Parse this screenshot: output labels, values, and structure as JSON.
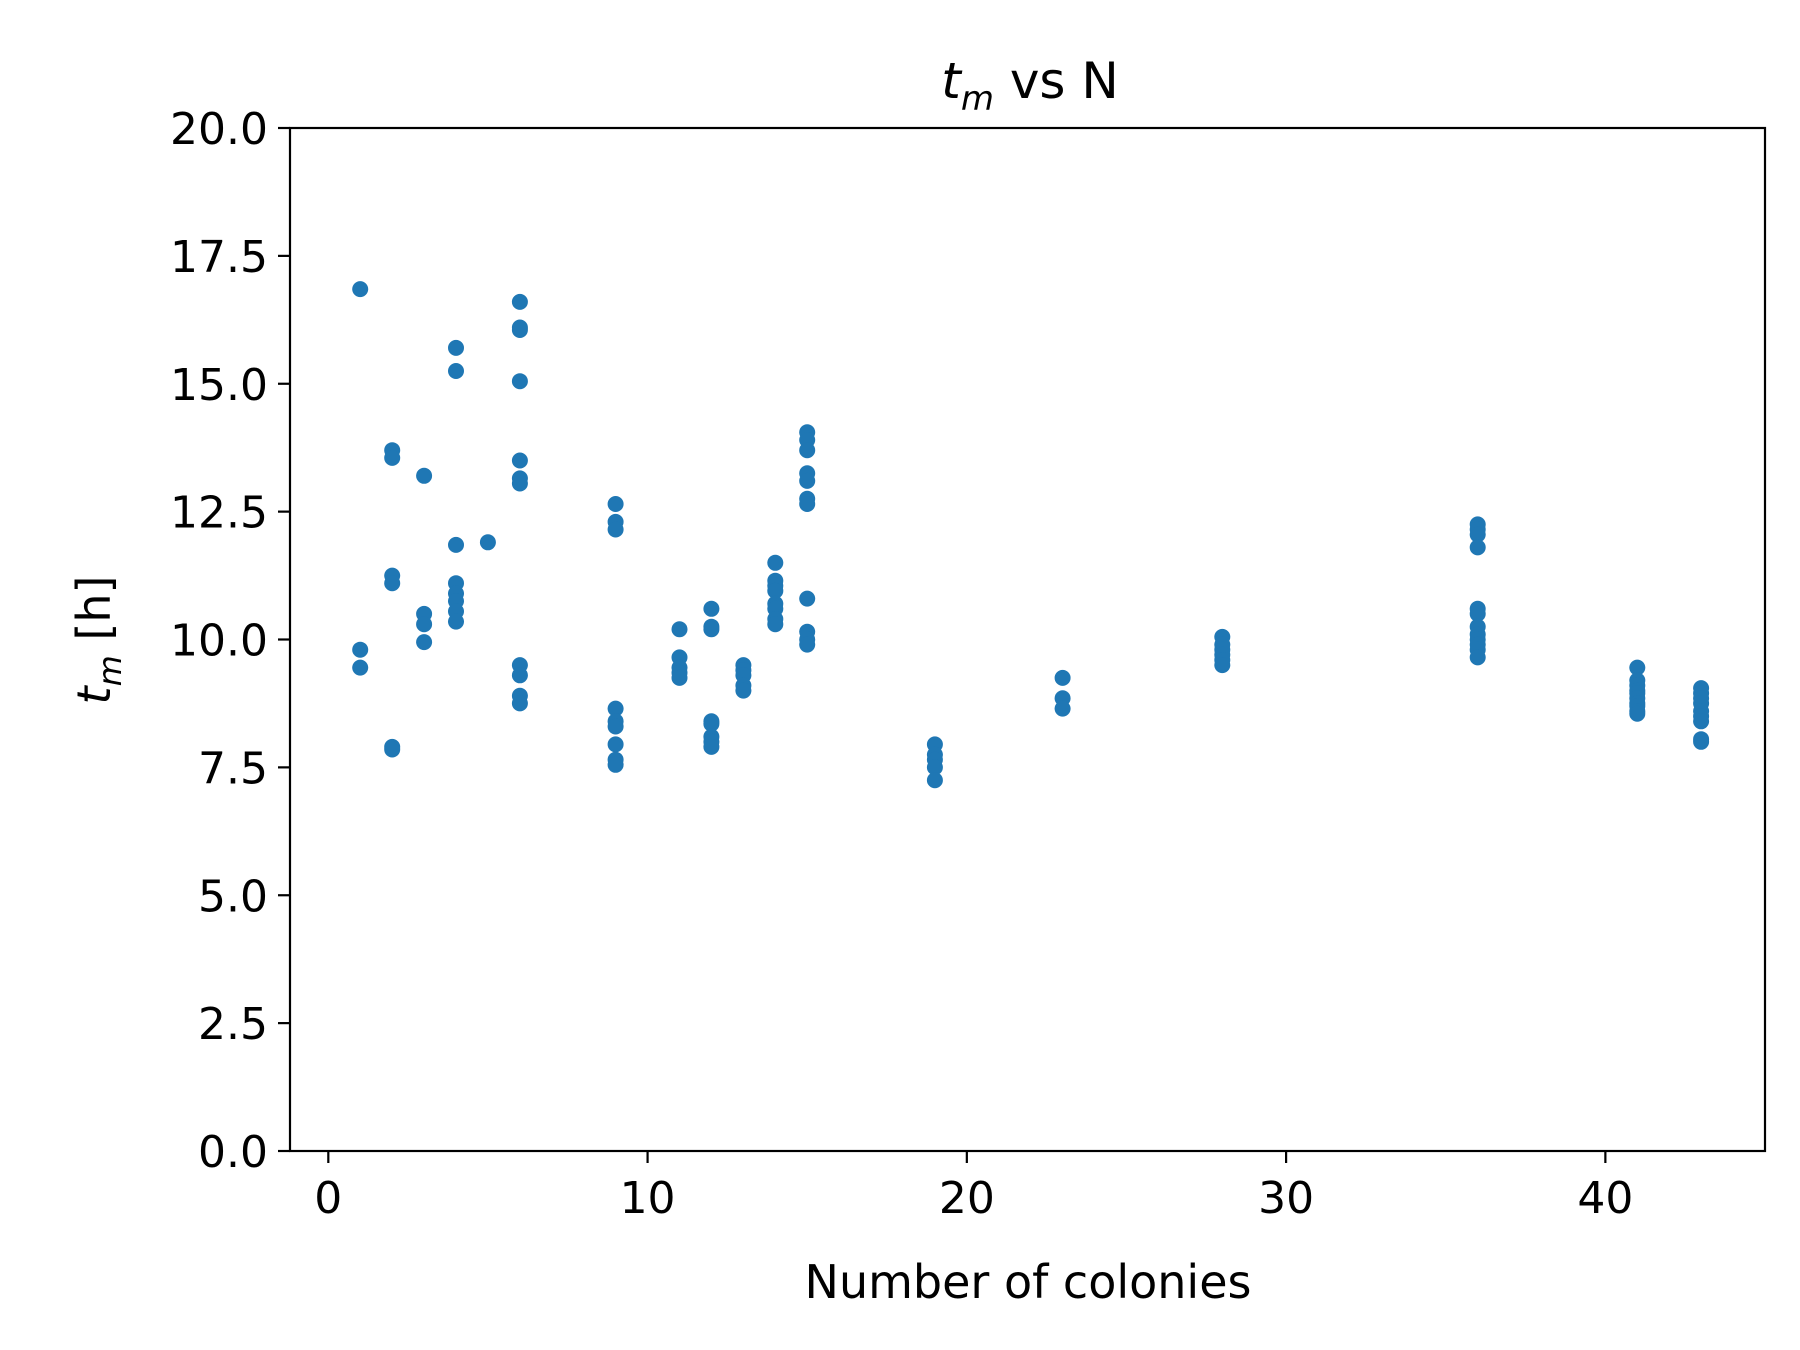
{
  "chart_data": {
    "type": "scatter",
    "title": "t_m vs N",
    "title_parts": {
      "symbol": "t",
      "subscript": "m",
      "rest": " vs N"
    },
    "xlabel": "Number of colonies",
    "ylabel": "t_m [h]",
    "ylabel_parts": {
      "symbol": "t",
      "subscript": "m",
      "rest": " [h]"
    },
    "xlim": [
      -1.2,
      45
    ],
    "ylim": [
      0,
      20
    ],
    "xticks": [
      0,
      10,
      20,
      30,
      40
    ],
    "yticks": [
      0.0,
      2.5,
      5.0,
      7.5,
      10.0,
      12.5,
      15.0,
      17.5,
      20.0
    ],
    "xtick_labels": [
      "0",
      "10",
      "20",
      "30",
      "40"
    ],
    "ytick_labels": [
      "0.0",
      "2.5",
      "5.0",
      "7.5",
      "10.0",
      "12.5",
      "15.0",
      "17.5",
      "20.0"
    ],
    "grid": false,
    "marker_color": "#1f77b4",
    "series": [
      {
        "points": [
          [
            1,
            16.85
          ],
          [
            1,
            9.8
          ],
          [
            1,
            9.45
          ],
          [
            2,
            13.7
          ],
          [
            2,
            13.55
          ],
          [
            2,
            11.25
          ],
          [
            2,
            11.1
          ],
          [
            2,
            7.9
          ],
          [
            2,
            7.85
          ],
          [
            3,
            13.2
          ],
          [
            3,
            10.5
          ],
          [
            3,
            10.3
          ],
          [
            3,
            9.95
          ],
          [
            4,
            15.7
          ],
          [
            4,
            15.25
          ],
          [
            4,
            11.85
          ],
          [
            4,
            11.1
          ],
          [
            4,
            10.9
          ],
          [
            4,
            10.75
          ],
          [
            4,
            10.55
          ],
          [
            4,
            10.35
          ],
          [
            5,
            11.9
          ],
          [
            6,
            16.6
          ],
          [
            6,
            16.1
          ],
          [
            6,
            16.05
          ],
          [
            6,
            15.05
          ],
          [
            6,
            13.5
          ],
          [
            6,
            13.15
          ],
          [
            6,
            13.05
          ],
          [
            6,
            9.5
          ],
          [
            6,
            9.3
          ],
          [
            6,
            8.9
          ],
          [
            6,
            8.75
          ],
          [
            9,
            12.65
          ],
          [
            9,
            12.3
          ],
          [
            9,
            12.15
          ],
          [
            9,
            8.65
          ],
          [
            9,
            8.4
          ],
          [
            9,
            8.3
          ],
          [
            9,
            7.95
          ],
          [
            9,
            7.65
          ],
          [
            9,
            7.55
          ],
          [
            11,
            10.2
          ],
          [
            11,
            9.65
          ],
          [
            11,
            9.45
          ],
          [
            11,
            9.35
          ],
          [
            11,
            9.25
          ],
          [
            12,
            10.6
          ],
          [
            12,
            10.25
          ],
          [
            12,
            10.2
          ],
          [
            12,
            8.4
          ],
          [
            12,
            8.35
          ],
          [
            12,
            8.1
          ],
          [
            12,
            8.0
          ],
          [
            12,
            7.9
          ],
          [
            13,
            9.5
          ],
          [
            13,
            9.4
          ],
          [
            13,
            9.3
          ],
          [
            13,
            9.1
          ],
          [
            13,
            9.0
          ],
          [
            14,
            11.5
          ],
          [
            14,
            11.15
          ],
          [
            14,
            11.05
          ],
          [
            14,
            10.95
          ],
          [
            14,
            10.7
          ],
          [
            14,
            10.6
          ],
          [
            14,
            10.4
          ],
          [
            14,
            10.3
          ],
          [
            15,
            14.05
          ],
          [
            15,
            13.9
          ],
          [
            15,
            13.7
          ],
          [
            15,
            13.25
          ],
          [
            15,
            13.1
          ],
          [
            15,
            12.75
          ],
          [
            15,
            12.65
          ],
          [
            15,
            10.8
          ],
          [
            15,
            10.15
          ],
          [
            15,
            10.0
          ],
          [
            15,
            9.9
          ],
          [
            19,
            7.95
          ],
          [
            19,
            7.75
          ],
          [
            19,
            7.65
          ],
          [
            19,
            7.5
          ],
          [
            19,
            7.25
          ],
          [
            23,
            9.25
          ],
          [
            23,
            8.85
          ],
          [
            23,
            8.65
          ],
          [
            28,
            10.05
          ],
          [
            28,
            9.9
          ],
          [
            28,
            9.8
          ],
          [
            28,
            9.7
          ],
          [
            28,
            9.6
          ],
          [
            28,
            9.5
          ],
          [
            36,
            12.25
          ],
          [
            36,
            12.15
          ],
          [
            36,
            12.05
          ],
          [
            36,
            11.8
          ],
          [
            36,
            10.6
          ],
          [
            36,
            10.5
          ],
          [
            36,
            10.25
          ],
          [
            36,
            10.1
          ],
          [
            36,
            10.0
          ],
          [
            36,
            9.9
          ],
          [
            36,
            9.8
          ],
          [
            36,
            9.65
          ],
          [
            41,
            9.45
          ],
          [
            41,
            9.2
          ],
          [
            41,
            9.1
          ],
          [
            41,
            9.0
          ],
          [
            41,
            8.95
          ],
          [
            41,
            8.85
          ],
          [
            41,
            8.75
          ],
          [
            41,
            8.7
          ],
          [
            41,
            8.6
          ],
          [
            41,
            8.55
          ],
          [
            43,
            9.05
          ],
          [
            43,
            8.95
          ],
          [
            43,
            8.85
          ],
          [
            43,
            8.75
          ],
          [
            43,
            8.6
          ],
          [
            43,
            8.5
          ],
          [
            43,
            8.4
          ],
          [
            43,
            8.05
          ],
          [
            43,
            8.0
          ]
        ]
      }
    ]
  }
}
